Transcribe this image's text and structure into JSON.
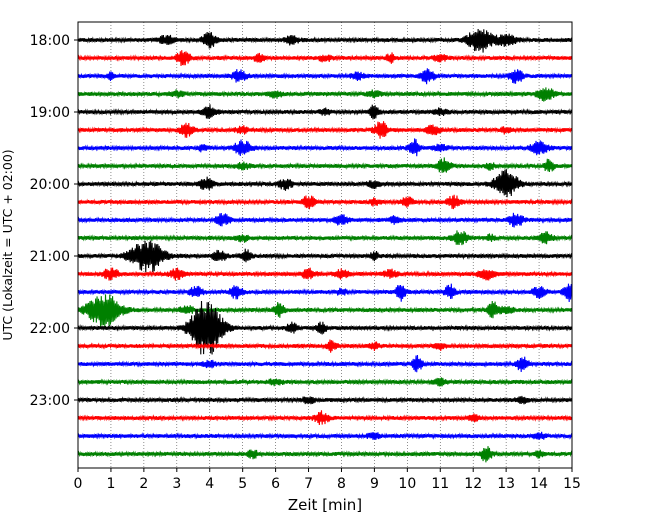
{
  "chart_data": {
    "type": "line",
    "title": "",
    "xlabel": "Zeit  [min]",
    "ylabel": "UTC (Lokalzeit = UTC + 02:00)",
    "xlim": [
      0,
      15
    ],
    "x_ticks": [
      "0",
      "1",
      "2",
      "3",
      "4",
      "5",
      "6",
      "7",
      "8",
      "9",
      "10",
      "11",
      "12",
      "13",
      "14",
      "15"
    ],
    "y_ticks": [
      "18:00",
      "19:00",
      "20:00",
      "21:00",
      "22:00",
      "23:00"
    ],
    "grid": "vertical dotted lines at each minute",
    "trace_interval_minutes": 15,
    "first_trace": "18:00",
    "colors": [
      "#000000",
      "#ff0000",
      "#0000ff",
      "#008000"
    ],
    "traces": [
      {
        "time": "18:00",
        "color": "#000000",
        "noise": 2,
        "events": [
          [
            2.7,
            0.25,
            4
          ],
          [
            4.0,
            0.2,
            8
          ],
          [
            6.5,
            0.2,
            4
          ],
          [
            12.2,
            0.35,
            12
          ],
          [
            13.0,
            0.3,
            5
          ]
        ]
      },
      {
        "time": "18:15",
        "color": "#ff0000",
        "noise": 2,
        "events": [
          [
            3.2,
            0.2,
            7
          ],
          [
            5.5,
            0.15,
            4
          ],
          [
            7.5,
            0.2,
            3
          ],
          [
            9.5,
            0.15,
            4
          ],
          [
            11.0,
            0.2,
            3
          ]
        ]
      },
      {
        "time": "18:30",
        "color": "#0000ff",
        "noise": 2,
        "events": [
          [
            1.0,
            0.1,
            3
          ],
          [
            4.9,
            0.2,
            6
          ],
          [
            8.5,
            0.2,
            3
          ],
          [
            10.6,
            0.2,
            7
          ],
          [
            13.3,
            0.2,
            7
          ]
        ]
      },
      {
        "time": "18:45",
        "color": "#008000",
        "noise": 2,
        "events": [
          [
            3.0,
            0.2,
            3
          ],
          [
            6.0,
            0.2,
            3
          ],
          [
            9.0,
            0.2,
            3
          ],
          [
            14.2,
            0.25,
            6
          ]
        ]
      },
      {
        "time": "19:00",
        "color": "#000000",
        "noise": 2,
        "events": [
          [
            4.0,
            0.2,
            6
          ],
          [
            7.5,
            0.15,
            3
          ],
          [
            9.0,
            0.12,
            8
          ],
          [
            11.0,
            0.2,
            3
          ]
        ]
      },
      {
        "time": "19:15",
        "color": "#ff0000",
        "noise": 2,
        "events": [
          [
            3.3,
            0.2,
            6
          ],
          [
            5.0,
            0.2,
            3
          ],
          [
            9.2,
            0.2,
            8
          ],
          [
            10.8,
            0.2,
            5
          ],
          [
            13.0,
            0.15,
            3
          ]
        ]
      },
      {
        "time": "19:30",
        "color": "#0000ff",
        "noise": 2,
        "events": [
          [
            3.8,
            0.15,
            3
          ],
          [
            5.0,
            0.25,
            7
          ],
          [
            10.2,
            0.15,
            9
          ],
          [
            11.0,
            0.2,
            3
          ],
          [
            14.0,
            0.25,
            6
          ]
        ]
      },
      {
        "time": "19:45",
        "color": "#008000",
        "noise": 2,
        "events": [
          [
            5.0,
            0.2,
            3
          ],
          [
            11.1,
            0.2,
            7
          ],
          [
            12.5,
            0.15,
            3
          ],
          [
            14.3,
            0.15,
            6
          ]
        ]
      },
      {
        "time": "20:00",
        "color": "#000000",
        "noise": 2,
        "events": [
          [
            3.9,
            0.2,
            6
          ],
          [
            6.3,
            0.2,
            5
          ],
          [
            9.0,
            0.2,
            3
          ],
          [
            13.0,
            0.35,
            13
          ]
        ]
      },
      {
        "time": "20:15",
        "color": "#ff0000",
        "noise": 2,
        "events": [
          [
            7.0,
            0.2,
            6
          ],
          [
            9.0,
            0.15,
            3
          ],
          [
            10.0,
            0.2,
            4
          ],
          [
            11.4,
            0.2,
            6
          ]
        ]
      },
      {
        "time": "20:30",
        "color": "#0000ff",
        "noise": 2,
        "events": [
          [
            4.4,
            0.2,
            6
          ],
          [
            8.0,
            0.2,
            5
          ],
          [
            9.6,
            0.15,
            3
          ],
          [
            13.3,
            0.2,
            7
          ]
        ]
      },
      {
        "time": "20:45",
        "color": "#008000",
        "noise": 2,
        "events": [
          [
            5.0,
            0.2,
            3
          ],
          [
            11.6,
            0.2,
            7
          ],
          [
            12.5,
            0.15,
            3
          ],
          [
            14.2,
            0.2,
            5
          ]
        ]
      },
      {
        "time": "21:00",
        "color": "#000000",
        "noise": 2,
        "events": [
          [
            2.1,
            0.5,
            16
          ],
          [
            4.3,
            0.2,
            5
          ],
          [
            5.1,
            0.15,
            6
          ],
          [
            9.0,
            0.12,
            4
          ]
        ]
      },
      {
        "time": "21:15",
        "color": "#ff0000",
        "noise": 2,
        "events": [
          [
            1.0,
            0.25,
            5
          ],
          [
            3.0,
            0.2,
            5
          ],
          [
            7.0,
            0.2,
            5
          ],
          [
            8.0,
            0.2,
            4
          ],
          [
            9.5,
            0.2,
            4
          ],
          [
            12.4,
            0.25,
            5
          ]
        ]
      },
      {
        "time": "21:30",
        "color": "#0000ff",
        "noise": 2,
        "events": [
          [
            3.6,
            0.2,
            5
          ],
          [
            4.8,
            0.2,
            6
          ],
          [
            8.0,
            0.15,
            3
          ],
          [
            9.8,
            0.15,
            8
          ],
          [
            11.3,
            0.15,
            7
          ],
          [
            14.0,
            0.2,
            5
          ],
          [
            14.9,
            0.15,
            9
          ]
        ]
      },
      {
        "time": "21:45",
        "color": "#008000",
        "noise": 2,
        "events": [
          [
            0.8,
            0.5,
            16
          ],
          [
            3.3,
            0.2,
            4
          ],
          [
            6.1,
            0.15,
            7
          ],
          [
            12.6,
            0.15,
            8
          ],
          [
            13.0,
            0.2,
            4
          ]
        ]
      },
      {
        "time": "22:00",
        "color": "#000000",
        "noise": 2,
        "events": [
          [
            3.9,
            0.45,
            30
          ],
          [
            6.5,
            0.15,
            6
          ],
          [
            7.4,
            0.15,
            5
          ]
        ]
      },
      {
        "time": "22:15",
        "color": "#ff0000",
        "noise": 2,
        "events": [
          [
            7.7,
            0.15,
            5
          ],
          [
            9.0,
            0.15,
            3
          ],
          [
            11.0,
            0.15,
            3
          ]
        ]
      },
      {
        "time": "22:30",
        "color": "#0000ff",
        "noise": 2,
        "events": [
          [
            4.0,
            0.2,
            3
          ],
          [
            10.3,
            0.15,
            7
          ],
          [
            13.5,
            0.15,
            9
          ]
        ]
      },
      {
        "time": "22:45",
        "color": "#008000",
        "noise": 2,
        "events": [
          [
            6.0,
            0.2,
            3
          ],
          [
            11.0,
            0.2,
            3
          ]
        ]
      },
      {
        "time": "23:00",
        "color": "#000000",
        "noise": 2,
        "events": [
          [
            7.0,
            0.2,
            3
          ],
          [
            13.5,
            0.2,
            3
          ]
        ]
      },
      {
        "time": "23:15",
        "color": "#ff0000",
        "noise": 2,
        "events": [
          [
            7.4,
            0.2,
            6
          ],
          [
            12.0,
            0.15,
            3
          ]
        ]
      },
      {
        "time": "23:30",
        "color": "#0000ff",
        "noise": 2,
        "events": [
          [
            9.0,
            0.2,
            3
          ],
          [
            14.0,
            0.2,
            3
          ]
        ]
      },
      {
        "time": "23:45",
        "color": "#008000",
        "noise": 2,
        "events": [
          [
            5.3,
            0.15,
            4
          ],
          [
            12.4,
            0.15,
            8
          ],
          [
            14.0,
            0.15,
            3
          ]
        ]
      }
    ]
  }
}
